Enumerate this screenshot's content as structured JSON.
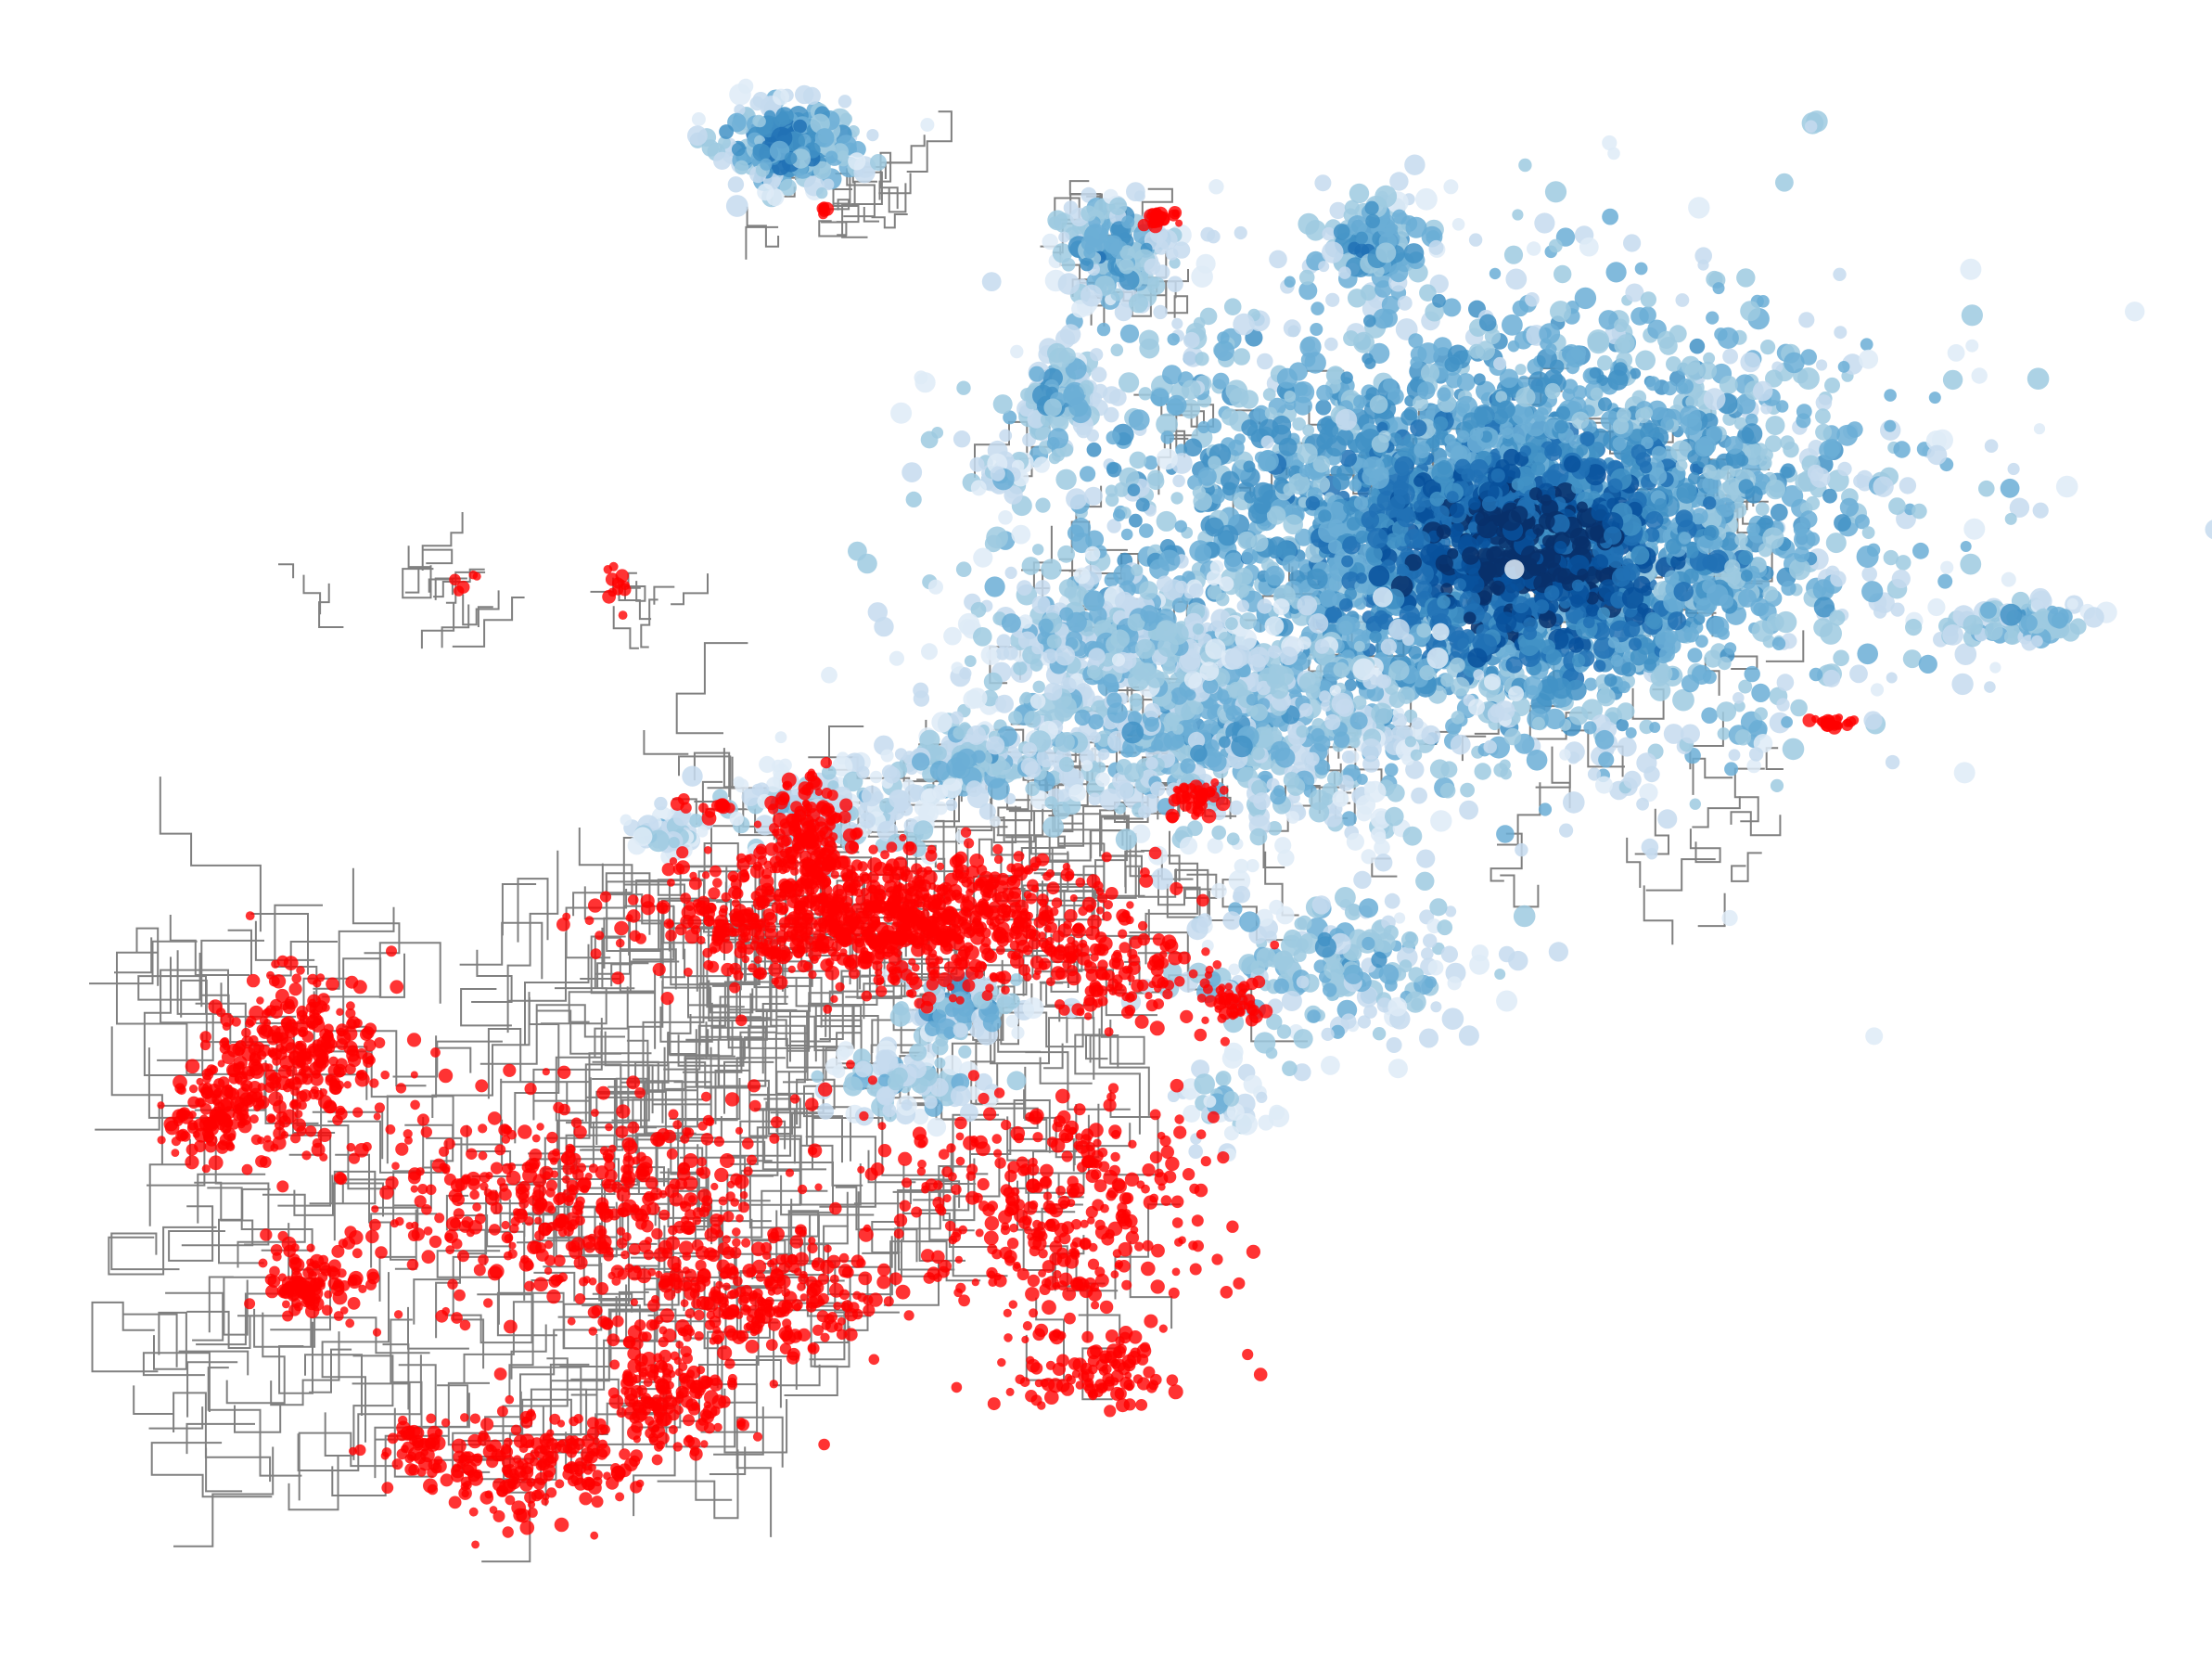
{
  "map": {
    "layers": [
      {
        "id": "road-network",
        "kind": "lines",
        "color": "#808080"
      },
      {
        "id": "blue-density-points",
        "kind": "points",
        "palette": [
          "#08306b",
          "#08519c",
          "#2171b5",
          "#4292c6",
          "#6baed6",
          "#9ecae1",
          "#c6dbef",
          "#deebf7"
        ]
      },
      {
        "id": "red-points",
        "kind": "points",
        "color": "#ff0000"
      }
    ],
    "background": "#ffffff"
  }
}
